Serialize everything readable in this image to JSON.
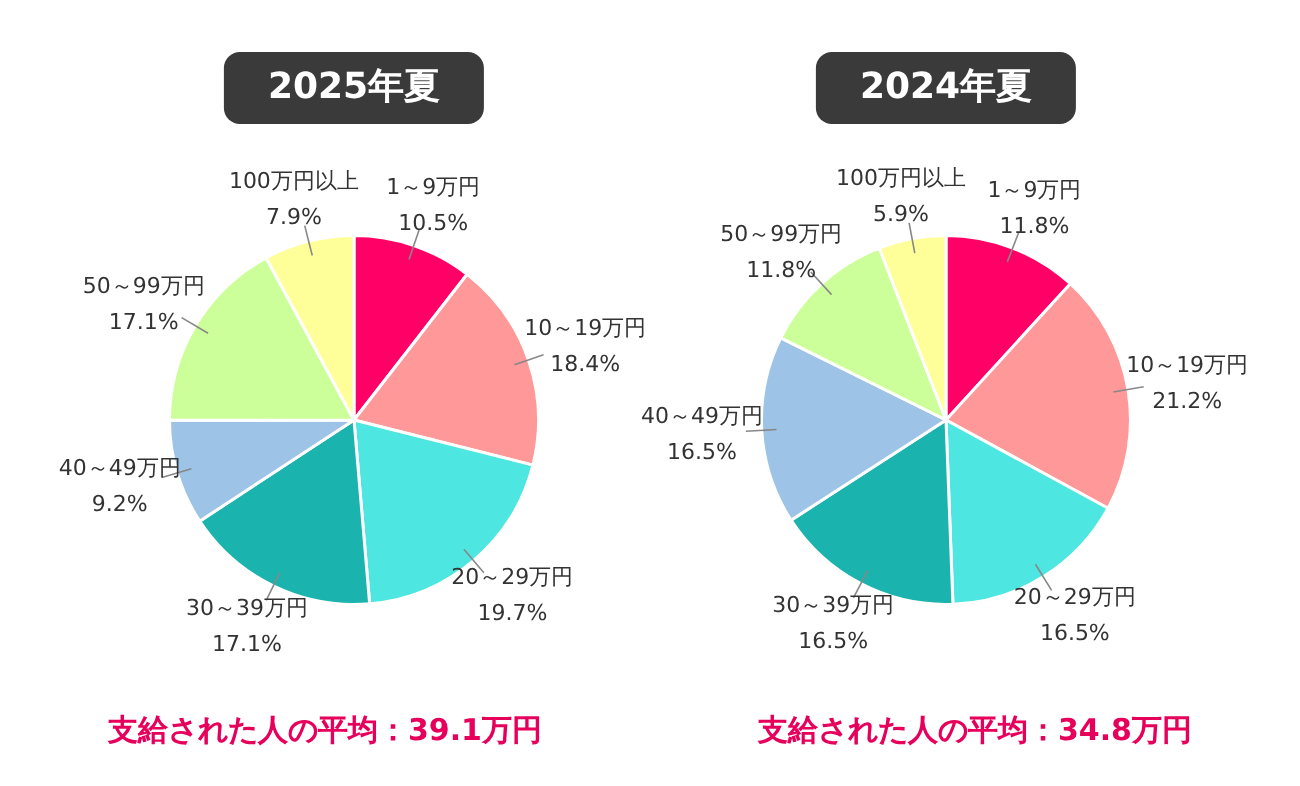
{
  "chart_data": [
    {
      "type": "pie",
      "title": "2025年夏",
      "categories": [
        "1～9万円",
        "10～19万円",
        "20～29万円",
        "30～39万円",
        "40～49万円",
        "50～99万円",
        "100万円以上"
      ],
      "values": [
        10.5,
        18.4,
        19.7,
        17.1,
        9.2,
        17.1,
        7.9
      ],
      "value_labels": [
        "10.5%",
        "18.4%",
        "19.7%",
        "17.1%",
        "9.2%",
        "17.1%",
        "7.9%"
      ],
      "colors": [
        "#ff0066",
        "#ff9999",
        "#4de6e0",
        "#1ab3ad",
        "#9dc3e6",
        "#ccff99",
        "#ffff99"
      ],
      "legend": false,
      "annotations": [
        "支給された人の平均：39.1万円"
      ]
    },
    {
      "type": "pie",
      "title": "2024年夏",
      "categories": [
        "1～9万円",
        "10～19万円",
        "20～29万円",
        "30～39万円",
        "40～49万円",
        "50～99万円",
        "100万円以上"
      ],
      "values": [
        11.8,
        21.2,
        16.5,
        16.5,
        16.5,
        11.8,
        5.9
      ],
      "value_labels": [
        "11.8%",
        "21.2%",
        "16.5%",
        "16.5%",
        "16.5%",
        "11.8%",
        "5.9%"
      ],
      "colors": [
        "#ff0066",
        "#ff9999",
        "#4de6e0",
        "#1ab3ad",
        "#9dc3e6",
        "#ccff99",
        "#ffff99"
      ],
      "legend": false,
      "annotations": [
        "支給された人の平均：34.8万円"
      ]
    }
  ]
}
